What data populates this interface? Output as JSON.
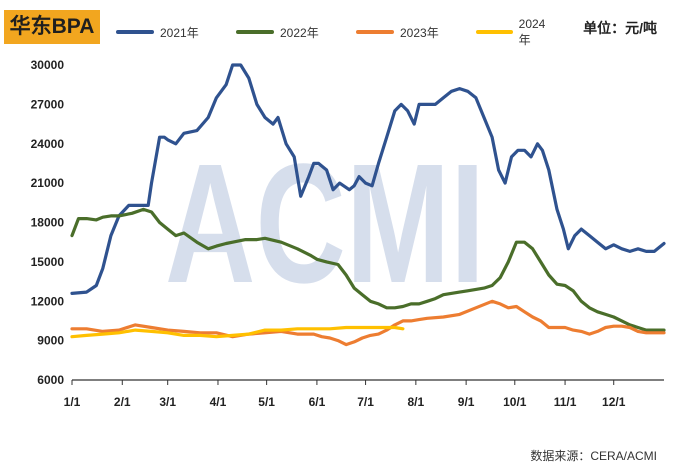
{
  "title": "华东BPA",
  "unit_label": "单位：元/吨",
  "source_label": "数据来源：CERA/ACMI",
  "watermark": "ACMI",
  "colors": {
    "2021": "#2f528f",
    "2022": "#4a6e2a",
    "2023": "#ed7d31",
    "2024": "#ffc000",
    "title_bg": "#f2a61f"
  },
  "chart_data": {
    "type": "line",
    "title": "华东BPA",
    "ylabel": "单位：元/吨",
    "xlabel": "",
    "ylim": [
      6000,
      30000
    ],
    "yticks": [
      6000,
      9000,
      12000,
      15000,
      18000,
      21000,
      24000,
      27000,
      30000
    ],
    "xlim": [
      1,
      366
    ],
    "xticks": [
      {
        "day": 1,
        "label": "1/1"
      },
      {
        "day": 32,
        "label": "2/1"
      },
      {
        "day": 60,
        "label": "3/1"
      },
      {
        "day": 91,
        "label": "4/1"
      },
      {
        "day": 121,
        "label": "5/1"
      },
      {
        "day": 152,
        "label": "6/1"
      },
      {
        "day": 182,
        "label": "7/1"
      },
      {
        "day": 213,
        "label": "8/1"
      },
      {
        "day": 244,
        "label": "9/1"
      },
      {
        "day": 274,
        "label": "10/1"
      },
      {
        "day": 305,
        "label": "11/1"
      },
      {
        "day": 335,
        "label": "12/1"
      }
    ],
    "legend_position": "top",
    "grid": false,
    "series": [
      {
        "name": "2021年",
        "x": [
          1,
          10,
          16,
          20,
          25,
          30,
          36,
          40,
          48,
          50,
          55,
          58,
          60,
          65,
          70,
          78,
          85,
          90,
          96,
          100,
          105,
          110,
          115,
          120,
          125,
          128,
          133,
          138,
          142,
          147,
          150,
          153,
          158,
          162,
          166,
          172,
          175,
          178,
          182,
          186,
          190,
          195,
          200,
          204,
          208,
          212,
          215,
          220,
          225,
          230,
          235,
          240,
          245,
          250,
          255,
          260,
          264,
          268,
          272,
          276,
          280,
          284,
          288,
          291,
          295,
          300,
          304,
          307,
          311,
          315,
          320,
          325,
          330,
          335,
          340,
          345,
          350,
          355,
          360,
          366
        ],
        "y": [
          12600,
          12700,
          13200,
          14500,
          17000,
          18500,
          19300,
          19300,
          19300,
          21000,
          24500,
          24500,
          24300,
          24000,
          24800,
          25000,
          26000,
          27500,
          28500,
          30000,
          30000,
          29000,
          27000,
          26000,
          25500,
          26000,
          24000,
          23000,
          20000,
          21500,
          22500,
          22500,
          22000,
          20500,
          21000,
          20500,
          20800,
          21500,
          21000,
          20800,
          22500,
          24500,
          26500,
          27000,
          26500,
          25500,
          27000,
          27000,
          27000,
          27500,
          28000,
          28200,
          28000,
          27500,
          26000,
          24500,
          22000,
          21000,
          23000,
          23500,
          23500,
          23000,
          24000,
          23500,
          22000,
          19000,
          17500,
          16000,
          17000,
          17500,
          17000,
          16500,
          16000,
          16300,
          16000,
          15800,
          16000,
          15800,
          15800,
          16400
        ]
      },
      {
        "name": "2022年",
        "x": [
          1,
          5,
          10,
          16,
          20,
          25,
          30,
          38,
          45,
          50,
          55,
          60,
          65,
          70,
          78,
          85,
          90,
          96,
          100,
          108,
          115,
          120,
          130,
          140,
          148,
          152,
          158,
          165,
          170,
          175,
          180,
          185,
          190,
          195,
          200,
          205,
          210,
          215,
          220,
          225,
          230,
          240,
          245,
          250,
          255,
          260,
          265,
          270,
          275,
          280,
          285,
          290,
          295,
          300,
          305,
          310,
          315,
          320,
          325,
          330,
          335,
          340,
          345,
          350,
          355,
          360,
          366
        ],
        "y": [
          17000,
          18300,
          18300,
          18200,
          18400,
          18500,
          18500,
          18700,
          19000,
          18800,
          18000,
          17500,
          17000,
          17200,
          16500,
          16000,
          16200,
          16400,
          16500,
          16700,
          16700,
          16800,
          16500,
          16000,
          15500,
          15200,
          15000,
          14800,
          14000,
          13000,
          12500,
          12000,
          11800,
          11500,
          11500,
          11600,
          11800,
          11800,
          12000,
          12200,
          12500,
          12700,
          12800,
          12900,
          13000,
          13200,
          13800,
          15000,
          16500,
          16500,
          16000,
          15000,
          14000,
          13300,
          13200,
          12800,
          12000,
          11500,
          11200,
          11000,
          10800,
          10500,
          10200,
          10000,
          9800,
          9800,
          9800
        ]
      },
      {
        "name": "2023年",
        "x": [
          1,
          10,
          20,
          30,
          40,
          50,
          60,
          70,
          80,
          90,
          100,
          110,
          120,
          130,
          140,
          150,
          155,
          160,
          165,
          170,
          175,
          180,
          185,
          190,
          195,
          200,
          205,
          210,
          215,
          220,
          230,
          240,
          250,
          260,
          265,
          270,
          275,
          280,
          285,
          290,
          295,
          300,
          305,
          310,
          315,
          320,
          325,
          330,
          335,
          340,
          345,
          350,
          355,
          360,
          366
        ],
        "y": [
          9900,
          9900,
          9700,
          9800,
          10200,
          10000,
          9800,
          9700,
          9600,
          9600,
          9300,
          9500,
          9600,
          9700,
          9500,
          9500,
          9300,
          9200,
          9000,
          8700,
          8900,
          9200,
          9400,
          9500,
          9800,
          10200,
          10500,
          10500,
          10600,
          10700,
          10800,
          11000,
          11500,
          12000,
          11800,
          11500,
          11600,
          11200,
          10800,
          10500,
          10000,
          10000,
          10000,
          9800,
          9700,
          9500,
          9700,
          10000,
          10100,
          10100,
          10000,
          9700,
          9600,
          9600,
          9600
        ]
      },
      {
        "name": "2024年",
        "x": [
          1,
          10,
          20,
          30,
          40,
          50,
          60,
          70,
          80,
          90,
          100,
          110,
          120,
          130,
          140,
          150,
          160,
          170,
          180,
          190,
          200,
          205
        ],
        "y": [
          9300,
          9400,
          9500,
          9600,
          9800,
          9700,
          9600,
          9400,
          9400,
          9300,
          9400,
          9500,
          9800,
          9800,
          9900,
          9900,
          9900,
          10000,
          10000,
          10000,
          10000,
          9900
        ]
      }
    ]
  }
}
